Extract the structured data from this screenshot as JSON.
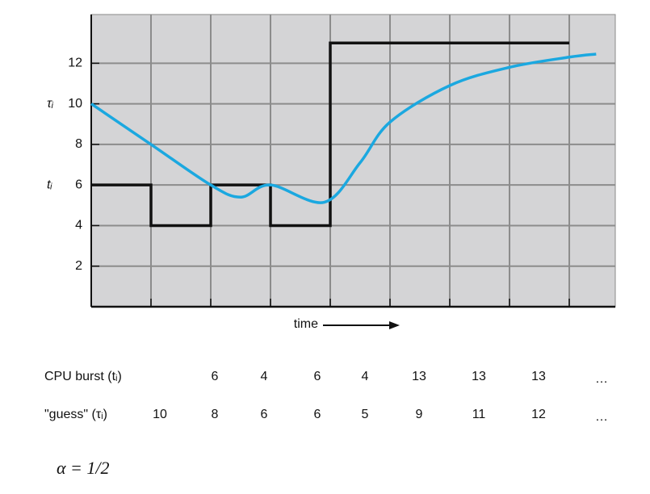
{
  "chart_data": {
    "type": "exponential-average",
    "ylim": [
      0,
      14.4
    ],
    "yticks": [
      2,
      4,
      6,
      8,
      10,
      12
    ],
    "xlim": [
      0,
      8.77
    ],
    "xticks": [
      0,
      1,
      2,
      3,
      4,
      5,
      6,
      7,
      8
    ],
    "grid": true,
    "x_label": "time",
    "y_annotations": [
      {
        "value": 10,
        "label": "τᵢ"
      },
      {
        "value": 6,
        "label": "tᵢ"
      }
    ],
    "series": [
      {
        "name": "CPU burst",
        "kind": "step",
        "color": "#111111",
        "x": [
          0,
          1,
          2,
          3,
          4,
          5,
          6,
          7
        ],
        "values": [
          6,
          4,
          6,
          4,
          13,
          13,
          13,
          13
        ]
      },
      {
        "name": "guess",
        "kind": "curve",
        "color": "#1ba8e0",
        "x": [
          0,
          1,
          2,
          2.5,
          3,
          3.9,
          4.5,
          5,
          6,
          7,
          8,
          8.45
        ],
        "values": [
          10,
          8,
          6,
          5.4,
          6,
          5.15,
          7.1,
          9.1,
          10.9,
          11.8,
          12.3,
          12.45
        ]
      }
    ]
  },
  "table": {
    "rows": [
      {
        "label": "CPU burst (tᵢ)",
        "values": [
          6,
          4,
          6,
          4,
          13,
          13,
          13
        ],
        "more": "…"
      },
      {
        "label": "\"guess\" (τᵢ)",
        "values": [
          10,
          8,
          6,
          6,
          5,
          9,
          11,
          12
        ],
        "more": "…"
      }
    ]
  },
  "formula": "α = 1/2"
}
